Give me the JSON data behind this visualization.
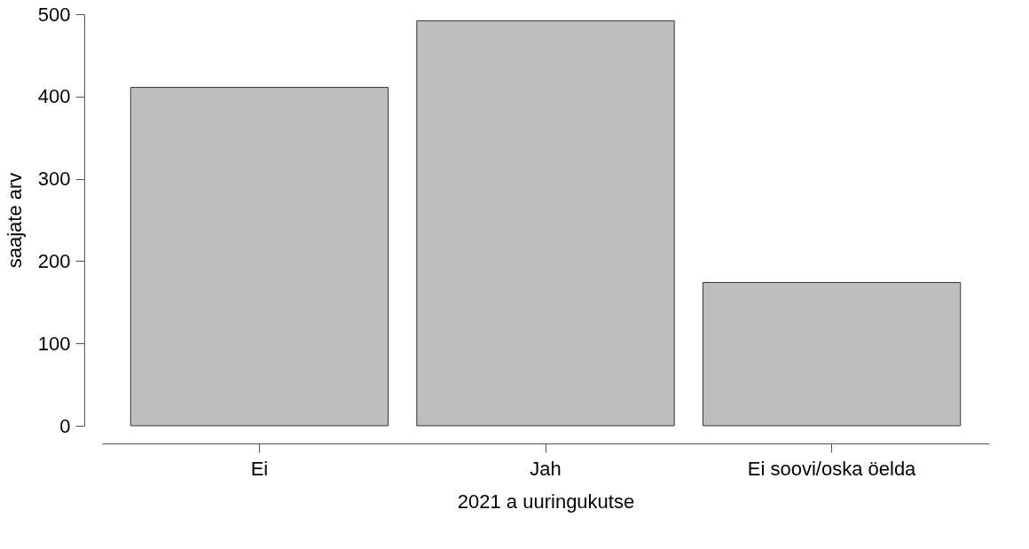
{
  "chart_data": {
    "type": "bar",
    "xlabel": "2021 a uuringukutse",
    "ylabel": "saajate arv",
    "categories": [
      "Ei",
      "Jah",
      "Ei soovi/oska öelda"
    ],
    "values": [
      411,
      492,
      174
    ],
    "color": "#bebebe",
    "ylim": [
      0,
      500
    ],
    "yticks": [
      0,
      100,
      200,
      300,
      400,
      500
    ],
    "grid": false
  }
}
